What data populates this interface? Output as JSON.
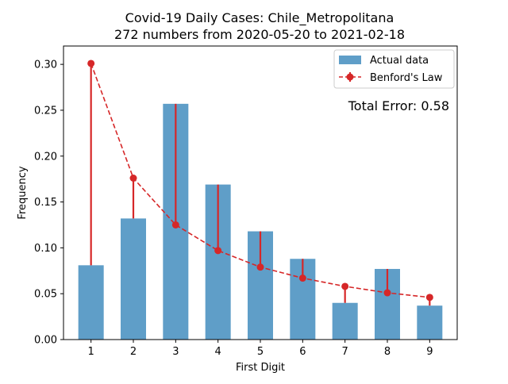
{
  "chart_data": {
    "type": "bar",
    "title_line1": "Covid-19 Daily Cases: Chile_Metropolitana",
    "title_line2": "272 numbers from 2020-05-20 to 2021-02-18",
    "xlabel": "First Digit",
    "ylabel": "Frequency",
    "categories": [
      "1",
      "2",
      "3",
      "4",
      "5",
      "6",
      "7",
      "8",
      "9"
    ],
    "ylim": [
      0,
      0.32
    ],
    "yticks": [
      "0.00",
      "0.05",
      "0.10",
      "0.15",
      "0.20",
      "0.25",
      "0.30"
    ],
    "series": [
      {
        "name": "Actual data",
        "kind": "bar",
        "color": "#5f9ec8",
        "values": [
          0.081,
          0.132,
          0.257,
          0.169,
          0.118,
          0.088,
          0.04,
          0.077,
          0.037
        ]
      },
      {
        "name": "Benford's Law",
        "kind": "line-with-error",
        "color": "#d62728",
        "values": [
          0.301,
          0.176,
          0.125,
          0.097,
          0.079,
          0.067,
          0.058,
          0.051,
          0.046
        ]
      }
    ],
    "annotation": "Total Error: 0.58",
    "annotation_color": "#d62728",
    "legend_position": "top-right",
    "grid": false
  }
}
